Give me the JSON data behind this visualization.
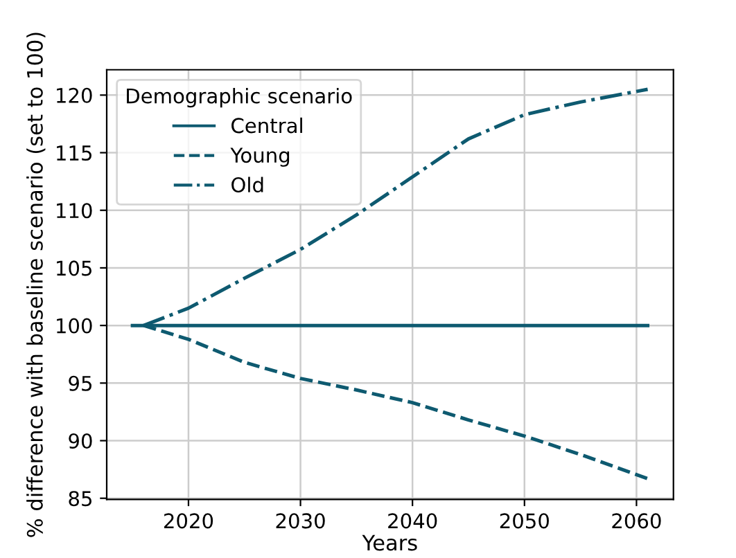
{
  "chart_data": {
    "type": "line",
    "xlabel": "Years",
    "ylabel": "% difference with baseline scenario (set to 100)",
    "legend_title": "Demographic scenario",
    "legend": "top left",
    "grid": true,
    "xlim": [
      2012.7,
      2063.3
    ],
    "xticks": [
      2020,
      2030,
      2040,
      2050,
      2060
    ],
    "ylim": [
      84.9,
      122.2
    ],
    "yticks": [
      85,
      90,
      95,
      100,
      105,
      110,
      115,
      120
    ],
    "series": [
      {
        "name": "Central",
        "color": "#0e5a70",
        "line_style": "solid",
        "x": [
          2015,
          2061
        ],
        "values": [
          100,
          100
        ]
      },
      {
        "name": "Young",
        "color": "#0e5a70",
        "line_style": "dashed",
        "x": [
          2016,
          2020,
          2025,
          2030,
          2035,
          2040,
          2045,
          2050,
          2055,
          2061
        ],
        "values": [
          100,
          98.8,
          96.8,
          95.4,
          94.4,
          93.3,
          91.8,
          90.4,
          88.8,
          86.7
        ]
      },
      {
        "name": "Old",
        "color": "#0e5a70",
        "line_style": "dashdot",
        "x": [
          2016,
          2020,
          2025,
          2030,
          2035,
          2040,
          2045,
          2050,
          2055,
          2061
        ],
        "values": [
          100,
          101.5,
          104.1,
          106.6,
          109.6,
          112.9,
          116.2,
          118.3,
          119.4,
          120.5
        ]
      }
    ]
  }
}
